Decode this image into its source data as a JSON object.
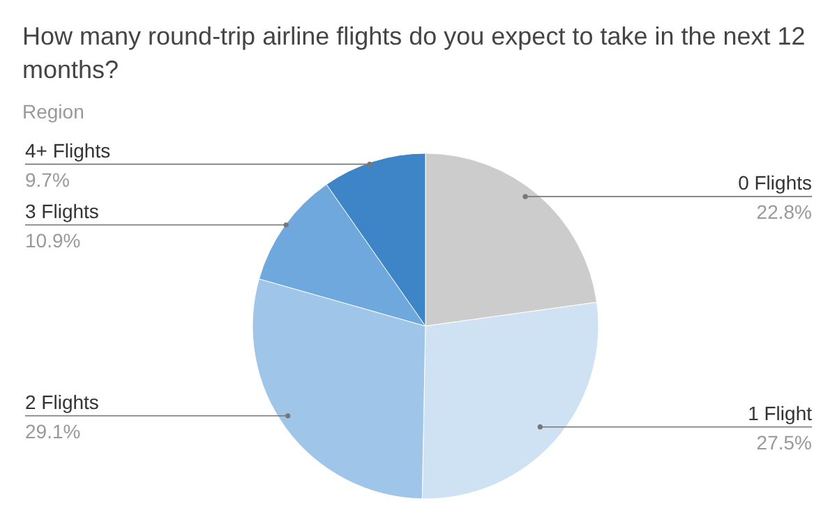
{
  "chart_data": {
    "type": "pie",
    "title": "How many round-trip airline flights do you expect to take in the next 12 months?",
    "subtitle": "Region",
    "categories": [
      "0 Flights",
      "1 Flight",
      "2 Flights",
      "3 Flights",
      "4+ Flights"
    ],
    "values": [
      22.8,
      27.5,
      29.1,
      10.9,
      9.7
    ],
    "value_labels": [
      "22.8%",
      "27.5%",
      "29.1%",
      "10.9%",
      "9.7%"
    ],
    "colors": [
      "#cccccc",
      "#cfe2f3",
      "#9fc5e8",
      "#6fa8dc",
      "#3d85c6"
    ],
    "legend": false
  }
}
